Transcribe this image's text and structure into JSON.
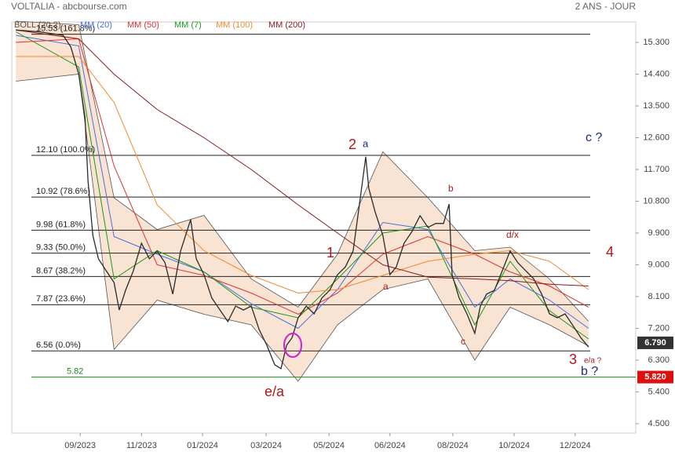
{
  "chart_data": {
    "type": "line",
    "title": "VOLTALIA - abcbourse.com",
    "subtitle": "2 ANS - JOUR",
    "band": {
      "name": "BOLL (20,2)",
      "color": "#f4c9a8",
      "x": [
        2023.494,
        2023.663,
        2023.758,
        2023.874,
        2024.0,
        2024.127,
        2024.253,
        2024.359,
        2024.481,
        2024.602,
        2024.728,
        2024.823,
        2024.929,
        2025.034
      ],
      "upper": [
        15.9,
        15.8,
        10.9,
        10.0,
        10.4,
        8.6,
        7.8,
        9.3,
        12.2,
        10.9,
        9.4,
        9.5,
        8.6,
        7.4
      ],
      "lower": [
        14.2,
        14.4,
        6.6,
        8.0,
        7.6,
        7.3,
        5.7,
        7.3,
        8.3,
        8.6,
        6.3,
        7.8,
        7.3,
        6.7
      ]
    },
    "series": [
      {
        "name": "MM (20)",
        "color": "#4a6ee0",
        "x": [
          2023.494,
          2023.663,
          2023.758,
          2023.874,
          2024.0,
          2024.127,
          2024.253,
          2024.359,
          2024.481,
          2024.602,
          2024.728,
          2024.823,
          2024.929,
          2025.034
        ],
        "values": [
          15.5,
          15.2,
          9.8,
          9.3,
          8.8,
          7.9,
          7.2,
          8.3,
          10.2,
          10.0,
          7.8,
          8.6,
          8.0,
          7.2
        ]
      },
      {
        "name": "MM (50)",
        "color": "#e03030",
        "x": [
          2023.494,
          2023.663,
          2023.758,
          2023.874,
          2024.0,
          2024.127,
          2024.253,
          2024.359,
          2024.481,
          2024.602,
          2024.728,
          2024.823,
          2024.929,
          2025.034
        ],
        "values": [
          15.3,
          15.4,
          11.8,
          9.0,
          8.7,
          8.2,
          7.6,
          8.2,
          9.3,
          9.8,
          9.3,
          8.8,
          8.4,
          7.8
        ]
      },
      {
        "name": "MM (7)",
        "color": "#1a9a1a",
        "x": [
          2023.494,
          2023.663,
          2023.758,
          2023.874,
          2024.0,
          2024.127,
          2024.253,
          2024.359,
          2024.481,
          2024.602,
          2024.728,
          2024.823,
          2024.929,
          2025.034
        ],
        "values": [
          15.6,
          14.6,
          8.6,
          9.4,
          8.8,
          7.8,
          7.5,
          8.6,
          9.9,
          10.1,
          7.3,
          9.1,
          7.7,
          6.9
        ]
      },
      {
        "name": "MM (100)",
        "color": "#f08a30",
        "x": [
          2023.494,
          2023.663,
          2023.758,
          2023.874,
          2024.0,
          2024.127,
          2024.253,
          2024.359,
          2024.481,
          2024.602,
          2024.728,
          2024.823,
          2024.929,
          2025.034
        ],
        "values": [
          14.9,
          14.9,
          13.6,
          10.7,
          9.4,
          8.7,
          8.2,
          8.3,
          8.7,
          9.1,
          9.3,
          9.4,
          9.1,
          8.3
        ]
      },
      {
        "name": "MM (200)",
        "color": "#8a1a1a",
        "x": [
          2023.494,
          2023.663,
          2023.758,
          2023.874,
          2024.0,
          2024.127,
          2024.253,
          2024.359,
          2024.481,
          2024.602,
          2024.728,
          2024.823,
          2024.929,
          2025.034
        ],
        "values": [
          15.65,
          15.4,
          14.4,
          13.4,
          12.6,
          11.7,
          10.7,
          9.9,
          9.0,
          8.65,
          8.6,
          8.55,
          8.45,
          8.4
        ]
      }
    ],
    "price": {
      "color": "#2a2a2a",
      "x": [
        2023.494,
        2023.557,
        2023.621,
        2023.642,
        2023.663,
        2023.68,
        2023.688,
        2023.701,
        2023.716,
        2023.737,
        2023.758,
        2023.772,
        2023.789,
        2023.81,
        2023.832,
        2023.853,
        2023.874,
        2023.895,
        2023.916,
        2023.937,
        2023.964,
        2023.979,
        2024.0,
        2024.021,
        2024.043,
        2024.064,
        2024.085,
        2024.106,
        2024.127,
        2024.148,
        2024.169,
        2024.19,
        2024.207,
        2024.222,
        2024.237,
        2024.253,
        2024.275,
        2024.296,
        2024.317,
        2024.338,
        2024.359,
        2024.38,
        2024.401,
        2024.418,
        2024.435,
        2024.443,
        2024.46,
        2024.481,
        2024.5,
        2024.517,
        2024.538,
        2024.559,
        2024.581,
        2024.602,
        2024.623,
        2024.644,
        2024.659,
        2024.667,
        2024.686,
        2024.707,
        2024.728,
        2024.743,
        2024.76,
        2024.781,
        2024.802,
        2024.823,
        2024.844,
        2024.865,
        2024.886,
        2024.908,
        2024.929,
        2024.95,
        2024.971,
        2024.992,
        2025.013,
        2025.034
      ],
      "values": [
        15.65,
        15.6,
        15.5,
        15.17,
        14.4,
        13.17,
        11.39,
        9.83,
        9.17,
        8.83,
        8.5,
        7.72,
        8.28,
        8.83,
        9.61,
        9.17,
        9.39,
        9.06,
        8.17,
        9.39,
        10.28,
        9.17,
        8.72,
        8.06,
        7.72,
        7.39,
        7.83,
        7.72,
        7.83,
        7.17,
        6.72,
        6.17,
        6.06,
        6.72,
        6.94,
        7.5,
        7.83,
        7.61,
        8.06,
        8.28,
        8.72,
        8.94,
        9.39,
        10.72,
        12.06,
        11.17,
        10.5,
        9.83,
        8.72,
        8.94,
        9.61,
        9.94,
        10.39,
        10.06,
        10.17,
        10.17,
        10.72,
        8.72,
        8.06,
        7.61,
        7.06,
        7.83,
        8.17,
        8.28,
        8.83,
        9.39,
        9.06,
        8.83,
        8.61,
        8.17,
        7.61,
        7.5,
        7.61,
        7.28,
        6.94,
        6.67
      ]
    },
    "levels": [
      {
        "value": 15.53,
        "label": "15.53 (161.8%)",
        "color": "#222"
      },
      {
        "value": 12.1,
        "label": "12.10 (100.0%)",
        "color": "#222"
      },
      {
        "value": 10.92,
        "label": "10.92 (78.6%)",
        "color": "#222"
      },
      {
        "value": 9.98,
        "label": "9.98 (61.8%)",
        "color": "#222"
      },
      {
        "value": 9.33,
        "label": "9.33 (50.0%)",
        "color": "#222"
      },
      {
        "value": 8.67,
        "label": "8.67 (38.2%)",
        "color": "#222"
      },
      {
        "value": 7.87,
        "label": "7.87 (23.6%)",
        "color": "#222"
      },
      {
        "value": 6.56,
        "label": "6.56 (0.0%)",
        "color": "#222"
      },
      {
        "value": 5.82,
        "color": "#1a8a1a"
      }
    ],
    "tags": [
      {
        "value": 6.79,
        "label": "6.790",
        "color": "#333"
      },
      {
        "value": 5.82,
        "label": "5.820",
        "color": "#dd1010"
      }
    ],
    "annotations": [
      "2",
      "a",
      "b",
      "d/x",
      "4",
      "1",
      "a",
      "c",
      "3",
      "e/a ?",
      "b ?",
      "c ?",
      "e/a"
    ],
    "xlim": [
      2023.483,
      2025.161
    ],
    "ylim": [
      4.233,
      15.878
    ],
    "xticks": [
      {
        "value": 2023.667,
        "label": "09/2023"
      },
      {
        "value": 2023.832,
        "label": "11/2023"
      },
      {
        "value": 2023.996,
        "label": "01/2024"
      },
      {
        "value": 2024.167,
        "label": "03/2024"
      },
      {
        "value": 2024.336,
        "label": "05/2024"
      },
      {
        "value": 2024.5,
        "label": "06/2024"
      },
      {
        "value": 2024.669,
        "label": "08/2024"
      },
      {
        "value": 2024.834,
        "label": "10/2024"
      },
      {
        "value": 2024.998,
        "label": "12/2024"
      }
    ],
    "yticks": [
      {
        "value": 15.3,
        "label": "15.300"
      },
      {
        "value": 14.4,
        "label": "14.400"
      },
      {
        "value": 13.5,
        "label": "13.500"
      },
      {
        "value": 12.6,
        "label": "12.600"
      },
      {
        "value": 11.7,
        "label": "11.700"
      },
      {
        "value": 10.8,
        "label": "10.800"
      },
      {
        "value": 9.9,
        "label": "9.900"
      },
      {
        "value": 9.0,
        "label": "9.000"
      },
      {
        "value": 8.1,
        "label": "8.100"
      },
      {
        "value": 7.2,
        "label": "7.200"
      },
      {
        "value": 6.3,
        "label": "6.300"
      },
      {
        "value": 5.4,
        "label": "5.400"
      },
      {
        "value": 4.5,
        "label": "4.500"
      }
    ]
  }
}
